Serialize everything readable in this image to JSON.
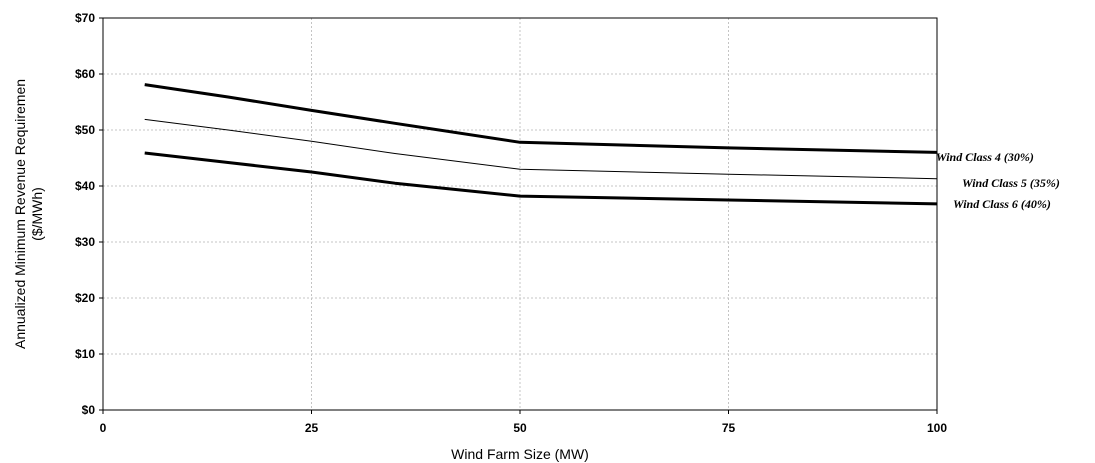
{
  "chart_data": {
    "type": "line",
    "xlabel": "Wind Farm Size (MW)",
    "ylabel_lines": [
      "Annualized Minimum Revenue Requiremen",
      "($/MWh)"
    ],
    "xlim": [
      0,
      100
    ],
    "ylim": [
      0,
      70
    ],
    "x_ticks": [
      0,
      25,
      50,
      75,
      100
    ],
    "x_tick_labels": [
      "0",
      "25",
      "50",
      "75",
      "100"
    ],
    "y_ticks": [
      0,
      10,
      20,
      30,
      40,
      50,
      60,
      70
    ],
    "y_tick_labels": [
      "$0",
      "$10",
      "$20",
      "$30",
      "$40",
      "$50",
      "$60",
      "$70"
    ],
    "grid": true,
    "series": [
      {
        "name": "Wind Class 4 (30%)",
        "x": [
          5,
          15,
          25,
          35,
          50,
          75,
          100
        ],
        "y": [
          58.1,
          55.9,
          53.5,
          51.2,
          47.8,
          46.8,
          46.0
        ],
        "stroke": "thick"
      },
      {
        "name": "Wind Class 5 (35%)",
        "x": [
          5,
          15,
          25,
          35,
          50,
          75,
          100
        ],
        "y": [
          51.9,
          50.0,
          48.0,
          45.8,
          43.0,
          42.1,
          41.3
        ],
        "stroke": "thin"
      },
      {
        "name": "Wind Class 6 (40%)",
        "x": [
          5,
          15,
          25,
          35,
          50,
          75,
          100
        ],
        "y": [
          45.9,
          44.2,
          42.5,
          40.5,
          38.2,
          37.5,
          36.8
        ],
        "stroke": "thick"
      }
    ]
  }
}
